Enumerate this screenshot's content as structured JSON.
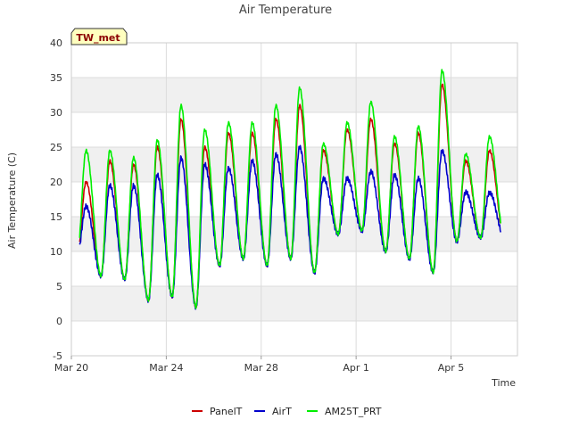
{
  "chart_data": {
    "type": "line",
    "title": "Air Temperature",
    "station_label": "TW_met",
    "xlabel": "Time",
    "ylabel": "Air Temperature (C)",
    "ylim": [
      -5,
      40
    ],
    "yticks": [
      -5,
      0,
      5,
      10,
      15,
      20,
      25,
      30,
      35,
      40
    ],
    "xlim_days": [
      0,
      18.8
    ],
    "xticks": [
      {
        "label": "Mar 20",
        "day": 0
      },
      {
        "label": "Mar 24",
        "day": 4
      },
      {
        "label": "Mar 28",
        "day": 8
      },
      {
        "label": "Apr 1",
        "day": 12
      },
      {
        "label": "Apr 5",
        "day": 16
      }
    ],
    "grid": true,
    "banded_background": true,
    "legend_position": "bottom-center",
    "daily_extremes": {
      "dates": [
        "Mar 20",
        "Mar 21",
        "Mar 22",
        "Mar 23",
        "Mar 24",
        "Mar 25",
        "Mar 26",
        "Mar 27",
        "Mar 28",
        "Mar 29",
        "Mar 30",
        "Mar 31",
        "Apr 1",
        "Apr 2",
        "Apr 3",
        "Apr 4",
        "Apr 5",
        "Apr 6"
      ],
      "min_value": [
        9.5,
        6.5,
        6.0,
        3.0,
        3.5,
        2.0,
        8.0,
        9.0,
        8.0,
        9.0,
        7.0,
        12.5,
        13.0,
        10.0,
        9.0,
        7.0,
        11.5,
        12.0
      ],
      "series": [
        {
          "name": "PanelT",
          "color": "#cc0000",
          "max_value": [
            20.0,
            23.0,
            22.5,
            25.0,
            29.0,
            25.0,
            27.0,
            27.0,
            29.0,
            31.0,
            24.5,
            27.5,
            29.0,
            25.5,
            27.0,
            34.0,
            23.0,
            24.5
          ]
        },
        {
          "name": "AirT",
          "color": "#0000cc",
          "max_value": [
            16.5,
            19.5,
            19.5,
            21.0,
            23.5,
            22.5,
            22.0,
            23.0,
            24.0,
            25.0,
            20.5,
            20.5,
            21.5,
            21.0,
            20.5,
            24.5,
            18.5,
            18.5
          ]
        },
        {
          "name": "AM25T_PRT",
          "color": "#00ee00",
          "max_value": [
            24.5,
            24.5,
            23.5,
            26.0,
            31.0,
            27.5,
            28.5,
            28.5,
            31.0,
            33.5,
            25.5,
            28.5,
            31.5,
            26.5,
            28.0,
            36.0,
            24.0,
            26.5
          ]
        }
      ]
    }
  }
}
